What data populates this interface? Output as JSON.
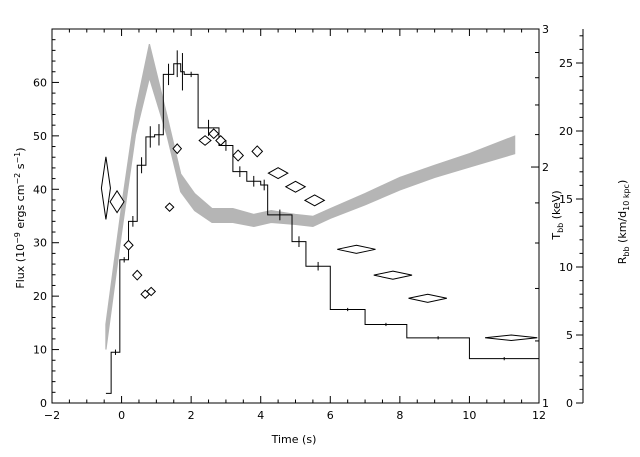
{
  "chart_data": {
    "type": "line",
    "xlabel": "Time (s)",
    "xlim": [
      -2,
      12
    ],
    "x_ticks": [
      "−2",
      "0",
      "2",
      "4",
      "6",
      "8",
      "10",
      "12"
    ],
    "y_left": {
      "label_parts": [
        "Flux (10",
        "−9",
        " ergs cm",
        "−2",
        " s",
        "−1",
        ")"
      ],
      "lim": [
        0,
        70
      ],
      "ticks": [
        "0",
        "10",
        "20",
        "30",
        "40",
        "50",
        "60"
      ]
    },
    "y_middle": {
      "label_main": "T",
      "label_sub": "bb",
      "label_unit": " (keV)",
      "scale": "log",
      "lim": [
        1,
        3
      ],
      "ticks": [
        "1",
        "2",
        "3"
      ]
    },
    "y_right": {
      "label_main": "R",
      "label_sub": "bb",
      "label_unit_main": " (km/d",
      "label_unit_sub": "10 kpc",
      "label_unit_end": ")",
      "lim": [
        0,
        27.5
      ],
      "ticks": [
        "0",
        "5",
        "10",
        "15",
        "20",
        "25"
      ]
    },
    "series": [
      {
        "style": "histogram",
        "axis": "left",
        "bins": [
          {
            "x0": -0.45,
            "x1": -0.3,
            "y": 1.8,
            "err": 0.0
          },
          {
            "x0": -0.3,
            "x1": -0.05,
            "y": 9.5,
            "err": 0.5
          },
          {
            "x0": -0.05,
            "x1": 0.2,
            "y": 26.8,
            "err": 0.5
          },
          {
            "x0": 0.2,
            "x1": 0.45,
            "y": 34.0,
            "err": 1.0
          },
          {
            "x0": 0.45,
            "x1": 0.7,
            "y": 44.5,
            "err": 1.5
          },
          {
            "x0": 0.7,
            "x1": 0.95,
            "y": 49.8,
            "err": 2.0
          },
          {
            "x0": 0.95,
            "x1": 1.2,
            "y": 50.2,
            "err": 2.0
          },
          {
            "x0": 1.2,
            "x1": 1.5,
            "y": 61.5,
            "err": 2.0
          },
          {
            "x0": 1.5,
            "x1": 1.7,
            "y": 63.5,
            "err": 2.5
          },
          {
            "x0": 1.7,
            "x1": 1.8,
            "y": 62.0,
            "err": 3.5
          },
          {
            "x0": 1.8,
            "x1": 2.2,
            "y": 61.5,
            "err": 0.5
          },
          {
            "x0": 2.2,
            "x1": 2.8,
            "y": 51.5,
            "err": 1.5
          },
          {
            "x0": 2.8,
            "x1": 3.2,
            "y": 48.2,
            "err": 1.0
          },
          {
            "x0": 3.2,
            "x1": 3.6,
            "y": 43.3,
            "err": 1.0
          },
          {
            "x0": 3.6,
            "x1": 4.0,
            "y": 41.5,
            "err": 1.0
          },
          {
            "x0": 4.0,
            "x1": 4.2,
            "y": 40.8,
            "err": 1.0
          },
          {
            "x0": 4.2,
            "x1": 4.9,
            "y": 35.2,
            "err": 1.0
          },
          {
            "x0": 4.9,
            "x1": 5.3,
            "y": 30.2,
            "err": 1.0
          },
          {
            "x0": 5.3,
            "x1": 6.0,
            "y": 25.6,
            "err": 0.8
          },
          {
            "x0": 6.0,
            "x1": 7.0,
            "y": 17.5,
            "err": 0.3
          },
          {
            "x0": 7.0,
            "x1": 8.2,
            "y": 14.7,
            "err": 0.3
          },
          {
            "x0": 8.2,
            "x1": 10.0,
            "y": 12.2,
            "err": 0.3
          },
          {
            "x0": 10.0,
            "x1": 12.0,
            "y": 8.3,
            "err": 0.3
          }
        ]
      },
      {
        "style": "band",
        "axis": "middle",
        "color": "#b5b5b5",
        "points": [
          {
            "x": -0.45,
            "lo": 1.17,
            "hi": 1.26
          },
          {
            "x": 0.0,
            "lo": 1.65,
            "hi": 1.78
          },
          {
            "x": 0.4,
            "lo": 2.2,
            "hi": 2.36
          },
          {
            "x": 0.8,
            "lo": 2.6,
            "hi": 2.87
          },
          {
            "x": 1.3,
            "lo": 2.2,
            "hi": 2.33
          },
          {
            "x": 1.7,
            "lo": 1.86,
            "hi": 1.96
          },
          {
            "x": 2.1,
            "lo": 1.76,
            "hi": 1.85
          },
          {
            "x": 2.6,
            "lo": 1.7,
            "hi": 1.77
          },
          {
            "x": 3.2,
            "lo": 1.7,
            "hi": 1.77
          },
          {
            "x": 3.8,
            "lo": 1.68,
            "hi": 1.74
          },
          {
            "x": 4.3,
            "lo": 1.7,
            "hi": 1.76
          },
          {
            "x": 5.0,
            "lo": 1.69,
            "hi": 1.74
          },
          {
            "x": 5.5,
            "lo": 1.68,
            "hi": 1.73
          },
          {
            "x": 6.0,
            "lo": 1.72,
            "hi": 1.77
          },
          {
            "x": 7.0,
            "lo": 1.79,
            "hi": 1.85
          },
          {
            "x": 8.0,
            "lo": 1.87,
            "hi": 1.94
          },
          {
            "x": 9.0,
            "lo": 1.94,
            "hi": 2.01
          },
          {
            "x": 10.0,
            "lo": 2.0,
            "hi": 2.08
          },
          {
            "x": 11.3,
            "lo": 2.08,
            "hi": 2.19
          }
        ]
      },
      {
        "style": "diamonds",
        "axis": "right",
        "points": [
          {
            "x": -0.45,
            "y": 15.8,
            "dx": 0.13,
            "dy": 2.3
          },
          {
            "x": -0.13,
            "y": 14.8,
            "dx": 0.2,
            "dy": 0.8
          },
          {
            "x": 0.2,
            "y": 11.6,
            "dx": 0.13,
            "dy": 0.35
          },
          {
            "x": 0.45,
            "y": 9.4,
            "dx": 0.13,
            "dy": 0.35
          },
          {
            "x": 0.68,
            "y": 8.0,
            "dx": 0.12,
            "dy": 0.3
          },
          {
            "x": 0.85,
            "y": 8.2,
            "dx": 0.12,
            "dy": 0.3
          },
          {
            "x": 1.38,
            "y": 14.4,
            "dx": 0.12,
            "dy": 0.3
          },
          {
            "x": 1.6,
            "y": 18.7,
            "dx": 0.12,
            "dy": 0.35
          },
          {
            "x": 2.4,
            "y": 19.3,
            "dx": 0.17,
            "dy": 0.35
          },
          {
            "x": 2.65,
            "y": 19.8,
            "dx": 0.14,
            "dy": 0.35
          },
          {
            "x": 2.85,
            "y": 19.3,
            "dx": 0.14,
            "dy": 0.35
          },
          {
            "x": 3.35,
            "y": 18.2,
            "dx": 0.15,
            "dy": 0.4
          },
          {
            "x": 3.9,
            "y": 18.5,
            "dx": 0.15,
            "dy": 0.4
          },
          {
            "x": 4.5,
            "y": 16.9,
            "dx": 0.28,
            "dy": 0.4
          },
          {
            "x": 5.0,
            "y": 15.9,
            "dx": 0.28,
            "dy": 0.4
          },
          {
            "x": 5.55,
            "y": 14.9,
            "dx": 0.28,
            "dy": 0.4
          },
          {
            "x": 6.75,
            "y": 11.3,
            "dx": 0.55,
            "dy": 0.3
          },
          {
            "x": 7.8,
            "y": 9.4,
            "dx": 0.55,
            "dy": 0.3
          },
          {
            "x": 8.8,
            "y": 7.7,
            "dx": 0.55,
            "dy": 0.3
          },
          {
            "x": 11.2,
            "y": 4.8,
            "dx": 0.75,
            "dy": 0.2
          }
        ]
      }
    ]
  }
}
